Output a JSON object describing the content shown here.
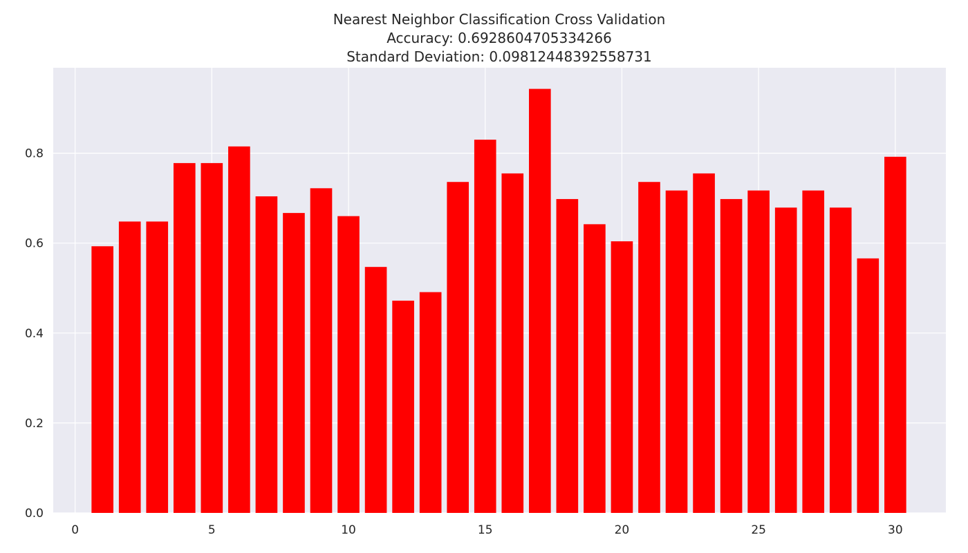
{
  "chart_data": {
    "type": "bar",
    "title": [
      "Nearest Neighbor Classification Cross Validation",
      "Accuracy: 0.6928604705334266",
      "Standard Deviation: 0.09812448392558731"
    ],
    "xlabel": "",
    "ylabel": "",
    "x": [
      1,
      2,
      3,
      4,
      5,
      6,
      7,
      8,
      9,
      10,
      11,
      12,
      13,
      14,
      15,
      16,
      17,
      18,
      19,
      20,
      21,
      22,
      23,
      24,
      25,
      26,
      27,
      28,
      29,
      30
    ],
    "values": [
      0.593,
      0.648,
      0.648,
      0.778,
      0.778,
      0.815,
      0.704,
      0.667,
      0.722,
      0.66,
      0.547,
      0.472,
      0.491,
      0.736,
      0.83,
      0.755,
      0.943,
      0.698,
      0.642,
      0.604,
      0.736,
      0.717,
      0.755,
      0.698,
      0.717,
      0.679,
      0.717,
      0.679,
      0.566,
      0.792
    ],
    "bar_width": 0.8,
    "xlim": [
      -0.8,
      31.85
    ],
    "ylim": [
      0,
      0.99
    ],
    "xticks": [
      0,
      5,
      10,
      15,
      20,
      25,
      30
    ],
    "yticks": [
      0.0,
      0.2,
      0.4,
      0.6,
      0.8
    ],
    "ytick_labels": [
      "0.0",
      "0.2",
      "0.4",
      "0.6",
      "0.8"
    ],
    "grid": true,
    "style": "seaborn-darkgrid",
    "bar_color": "#ff0000",
    "plot_background": "#eaeaf2",
    "grid_color": "#ffffff"
  }
}
